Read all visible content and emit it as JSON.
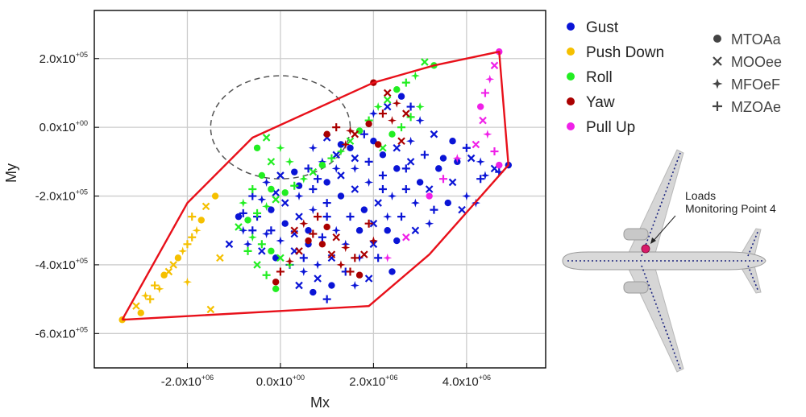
{
  "chart_data": {
    "type": "scatter",
    "title": "",
    "xlabel": "Mx",
    "ylabel": "My",
    "xlim": [
      -4000000,
      5700000
    ],
    "ylim": [
      -700000,
      340000
    ],
    "grid": true,
    "x_ticks": [
      {
        "value": -2000000,
        "mant": "-2.0x10",
        "exp": "+06"
      },
      {
        "value": 0,
        "mant": "0.0x10",
        "exp": "+00"
      },
      {
        "value": 2000000,
        "mant": "2.0x10",
        "exp": "+06"
      },
      {
        "value": 4000000,
        "mant": "4.0x10",
        "exp": "+06"
      }
    ],
    "y_ticks": [
      {
        "value": 200000,
        "mant": "2.0x10",
        "exp": "+05"
      },
      {
        "value": 0,
        "mant": "0.0x10",
        "exp": "+00"
      },
      {
        "value": -200000,
        "mant": "-2.0x10",
        "exp": "+05"
      },
      {
        "value": -400000,
        "mant": "-4.0x10",
        "exp": "+05"
      },
      {
        "value": -600000,
        "mant": "-6.0x10",
        "exp": "+05"
      }
    ],
    "series": [
      {
        "name": "Gust",
        "color": "#0a14d6",
        "points": [
          [
            4900000,
            -110000
          ],
          [
            4600000,
            -120000
          ],
          [
            4300000,
            -100000
          ],
          [
            4000000,
            -60000
          ],
          [
            3700000,
            -40000
          ],
          [
            3300000,
            -20000
          ],
          [
            3000000,
            20000
          ],
          [
            2800000,
            60000
          ],
          [
            2600000,
            90000
          ],
          [
            2300000,
            60000
          ],
          [
            2000000,
            40000
          ],
          [
            1800000,
            -20000
          ],
          [
            1500000,
            -60000
          ],
          [
            1200000,
            -80000
          ],
          [
            900000,
            -100000
          ],
          [
            600000,
            -120000
          ],
          [
            300000,
            -130000
          ],
          [
            0,
            -140000
          ],
          [
            -300000,
            -160000
          ],
          [
            -600000,
            -200000
          ],
          [
            -900000,
            -260000
          ],
          [
            -1100000,
            -340000
          ],
          [
            -800000,
            -300000
          ],
          [
            -500000,
            -260000
          ],
          [
            -200000,
            -240000
          ],
          [
            100000,
            -220000
          ],
          [
            400000,
            -200000
          ],
          [
            700000,
            -180000
          ],
          [
            1000000,
            -160000
          ],
          [
            1300000,
            -140000
          ],
          [
            1600000,
            -120000
          ],
          [
            1900000,
            -100000
          ],
          [
            2200000,
            -80000
          ],
          [
            2500000,
            -60000
          ],
          [
            2800000,
            -40000
          ],
          [
            3100000,
            -80000
          ],
          [
            3400000,
            -120000
          ],
          [
            3700000,
            -160000
          ],
          [
            4000000,
            -200000
          ],
          [
            4300000,
            -150000
          ],
          [
            3500000,
            -90000
          ],
          [
            3200000,
            -180000
          ],
          [
            2900000,
            -220000
          ],
          [
            2600000,
            -260000
          ],
          [
            2300000,
            -300000
          ],
          [
            2000000,
            -340000
          ],
          [
            1700000,
            -380000
          ],
          [
            1400000,
            -420000
          ],
          [
            1100000,
            -460000
          ],
          [
            800000,
            -440000
          ],
          [
            500000,
            -420000
          ],
          [
            200000,
            -400000
          ],
          [
            -100000,
            -380000
          ],
          [
            -400000,
            -360000
          ],
          [
            -700000,
            -340000
          ],
          [
            -200000,
            -300000
          ],
          [
            100000,
            -280000
          ],
          [
            400000,
            -260000
          ],
          [
            700000,
            -240000
          ],
          [
            1000000,
            -220000
          ],
          [
            1300000,
            -200000
          ],
          [
            1600000,
            -180000
          ],
          [
            1900000,
            -160000
          ],
          [
            2200000,
            -140000
          ],
          [
            2500000,
            -120000
          ],
          [
            2800000,
            -100000
          ],
          [
            1200000,
            -300000
          ],
          [
            900000,
            -320000
          ],
          [
            600000,
            -340000
          ],
          [
            300000,
            -360000
          ],
          [
            0,
            -330000
          ],
          [
            1500000,
            -260000
          ],
          [
            1800000,
            -240000
          ],
          [
            2100000,
            -220000
          ],
          [
            2400000,
            -200000
          ],
          [
            2700000,
            -180000
          ],
          [
            3000000,
            -160000
          ],
          [
            1100000,
            -380000
          ],
          [
            800000,
            -400000
          ],
          [
            500000,
            -380000
          ],
          [
            1700000,
            -300000
          ],
          [
            2000000,
            -280000
          ],
          [
            2300000,
            -260000
          ],
          [
            3300000,
            -240000
          ],
          [
            3600000,
            -220000
          ],
          [
            3900000,
            -240000
          ],
          [
            4200000,
            -220000
          ],
          [
            1000000,
            -500000
          ],
          [
            700000,
            -480000
          ],
          [
            400000,
            -460000
          ],
          [
            1400000,
            -340000
          ],
          [
            1000000,
            -260000
          ],
          [
            600000,
            -300000
          ],
          [
            300000,
            -310000
          ],
          [
            -300000,
            -310000
          ],
          [
            -600000,
            -300000
          ],
          [
            2500000,
            -330000
          ],
          [
            2900000,
            -300000
          ],
          [
            3200000,
            -280000
          ],
          [
            2100000,
            -380000
          ],
          [
            2400000,
            -420000
          ],
          [
            1900000,
            -440000
          ],
          [
            1600000,
            -460000
          ],
          [
            2700000,
            -120000
          ],
          [
            3800000,
            -100000
          ],
          [
            4100000,
            -90000
          ],
          [
            4400000,
            -140000
          ],
          [
            4700000,
            -130000
          ],
          [
            2000000,
            -40000
          ],
          [
            1600000,
            -90000
          ],
          [
            1200000,
            -120000
          ],
          [
            800000,
            -150000
          ],
          [
            400000,
            -170000
          ],
          [
            -100000,
            -190000
          ],
          [
            -400000,
            -210000
          ],
          [
            -800000,
            -250000
          ],
          [
            1300000,
            -50000
          ],
          [
            1000000,
            -30000
          ],
          [
            700000,
            -60000
          ],
          [
            2200000,
            -180000
          ]
        ]
      },
      {
        "name": "Push Down",
        "color": "#f5c000",
        "points": [
          [
            -3400000,
            -560000
          ],
          [
            -3100000,
            -520000
          ],
          [
            -2900000,
            -490000
          ],
          [
            -2700000,
            -460000
          ],
          [
            -2500000,
            -430000
          ],
          [
            -2300000,
            -400000
          ],
          [
            -2100000,
            -360000
          ],
          [
            -1900000,
            -320000
          ],
          [
            -1700000,
            -270000
          ],
          [
            -1600000,
            -230000
          ],
          [
            -1800000,
            -300000
          ],
          [
            -2000000,
            -340000
          ],
          [
            -2200000,
            -380000
          ],
          [
            -2400000,
            -420000
          ],
          [
            -2600000,
            -470000
          ],
          [
            -2800000,
            -500000
          ],
          [
            -3000000,
            -540000
          ],
          [
            -1500000,
            -530000
          ],
          [
            -2000000,
            -450000
          ],
          [
            -1900000,
            -260000
          ],
          [
            -1400000,
            -200000
          ],
          [
            -1300000,
            -380000
          ]
        ]
      },
      {
        "name": "Roll",
        "color": "#22ee22",
        "points": [
          [
            3300000,
            180000
          ],
          [
            3100000,
            190000
          ],
          [
            2900000,
            150000
          ],
          [
            2700000,
            130000
          ],
          [
            2500000,
            110000
          ],
          [
            2300000,
            80000
          ],
          [
            2100000,
            60000
          ],
          [
            1900000,
            20000
          ],
          [
            1700000,
            -10000
          ],
          [
            1500000,
            -40000
          ],
          [
            1300000,
            -70000
          ],
          [
            1100000,
            -90000
          ],
          [
            900000,
            -110000
          ],
          [
            700000,
            -130000
          ],
          [
            500000,
            -150000
          ],
          [
            300000,
            -170000
          ],
          [
            100000,
            -190000
          ],
          [
            -100000,
            -210000
          ],
          [
            -300000,
            -230000
          ],
          [
            -500000,
            -250000
          ],
          [
            -700000,
            -270000
          ],
          [
            -900000,
            -290000
          ],
          [
            -600000,
            -320000
          ],
          [
            -400000,
            -340000
          ],
          [
            -200000,
            -360000
          ],
          [
            0,
            -380000
          ],
          [
            200000,
            -400000
          ],
          [
            -300000,
            -430000
          ],
          [
            -100000,
            -470000
          ],
          [
            -500000,
            -400000
          ],
          [
            -800000,
            -220000
          ],
          [
            -600000,
            -180000
          ],
          [
            -400000,
            -140000
          ],
          [
            -200000,
            -100000
          ],
          [
            0,
            -60000
          ],
          [
            2600000,
            0
          ],
          [
            2400000,
            -20000
          ],
          [
            2200000,
            -60000
          ],
          [
            3000000,
            60000
          ],
          [
            2800000,
            30000
          ],
          [
            -500000,
            -60000
          ],
          [
            -300000,
            -30000
          ],
          [
            200000,
            -100000
          ],
          [
            -700000,
            -360000
          ],
          [
            -200000,
            -180000
          ]
        ]
      },
      {
        "name": "Yaw",
        "color": "#aa0000",
        "points": [
          [
            2000000,
            130000
          ],
          [
            2300000,
            100000
          ],
          [
            2500000,
            70000
          ],
          [
            2200000,
            40000
          ],
          [
            1900000,
            10000
          ],
          [
            1600000,
            -20000
          ],
          [
            1400000,
            -50000
          ],
          [
            1200000,
            0
          ],
          [
            1000000,
            -20000
          ],
          [
            2700000,
            40000
          ],
          [
            2400000,
            20000
          ],
          [
            800000,
            -260000
          ],
          [
            1000000,
            -290000
          ],
          [
            1200000,
            -320000
          ],
          [
            1400000,
            -350000
          ],
          [
            1600000,
            -380000
          ],
          [
            600000,
            -330000
          ],
          [
            400000,
            -360000
          ],
          [
            200000,
            -390000
          ],
          [
            0,
            -420000
          ],
          [
            -100000,
            -450000
          ],
          [
            300000,
            -300000
          ],
          [
            500000,
            -280000
          ],
          [
            700000,
            -310000
          ],
          [
            900000,
            -340000
          ],
          [
            1100000,
            -370000
          ],
          [
            1300000,
            -400000
          ],
          [
            1500000,
            -420000
          ],
          [
            1700000,
            -430000
          ],
          [
            1800000,
            -370000
          ],
          [
            2000000,
            -330000
          ],
          [
            1900000,
            -280000
          ],
          [
            2100000,
            -50000
          ],
          [
            2600000,
            -40000
          ],
          [
            1500000,
            -10000
          ]
        ]
      },
      {
        "name": "Pull Up",
        "color": "#f020e8",
        "points": [
          [
            4700000,
            220000
          ],
          [
            4600000,
            180000
          ],
          [
            4500000,
            140000
          ],
          [
            4400000,
            100000
          ],
          [
            4300000,
            60000
          ],
          [
            4350000,
            20000
          ],
          [
            4450000,
            -20000
          ],
          [
            4600000,
            -70000
          ],
          [
            4700000,
            -110000
          ],
          [
            4200000,
            -50000
          ],
          [
            3800000,
            -90000
          ],
          [
            3500000,
            -150000
          ],
          [
            3200000,
            -200000
          ],
          [
            2700000,
            -320000
          ],
          [
            2300000,
            -380000
          ]
        ]
      }
    ],
    "envelope": [
      [
        -3400000,
        -560000
      ],
      [
        -2000000,
        -220000
      ],
      [
        -600000,
        -30000
      ],
      [
        2000000,
        130000
      ],
      [
        3300000,
        180000
      ],
      [
        4700000,
        220000
      ],
      [
        4900000,
        -110000
      ],
      [
        3200000,
        -370000
      ],
      [
        1900000,
        -520000
      ],
      [
        -3400000,
        -560000
      ]
    ],
    "dashed_ellipse": {
      "cx": 0,
      "cy": 0,
      "rx": 1500000,
      "ry": 150000
    },
    "color_legend": {
      "placement": "right",
      "items": [
        {
          "label": "Gust",
          "color": "#0a14d6"
        },
        {
          "label": "Push Down",
          "color": "#f5c000"
        },
        {
          "label": "Roll",
          "color": "#22ee22"
        },
        {
          "label": "Yaw",
          "color": "#aa0000"
        },
        {
          "label": "Pull Up",
          "color": "#f020e8"
        }
      ]
    },
    "marker_legend": {
      "placement": "top-right",
      "items": [
        {
          "label": "MTOAa",
          "marker": "circle"
        },
        {
          "label": "MOOee",
          "marker": "x"
        },
        {
          "label": "MFOeF",
          "marker": "star4"
        },
        {
          "label": "MZOAe",
          "marker": "plus"
        }
      ]
    },
    "annotation": {
      "line1": "Loads",
      "line2": "Monitoring Point 4",
      "target_color": "#d81b6a"
    }
  }
}
